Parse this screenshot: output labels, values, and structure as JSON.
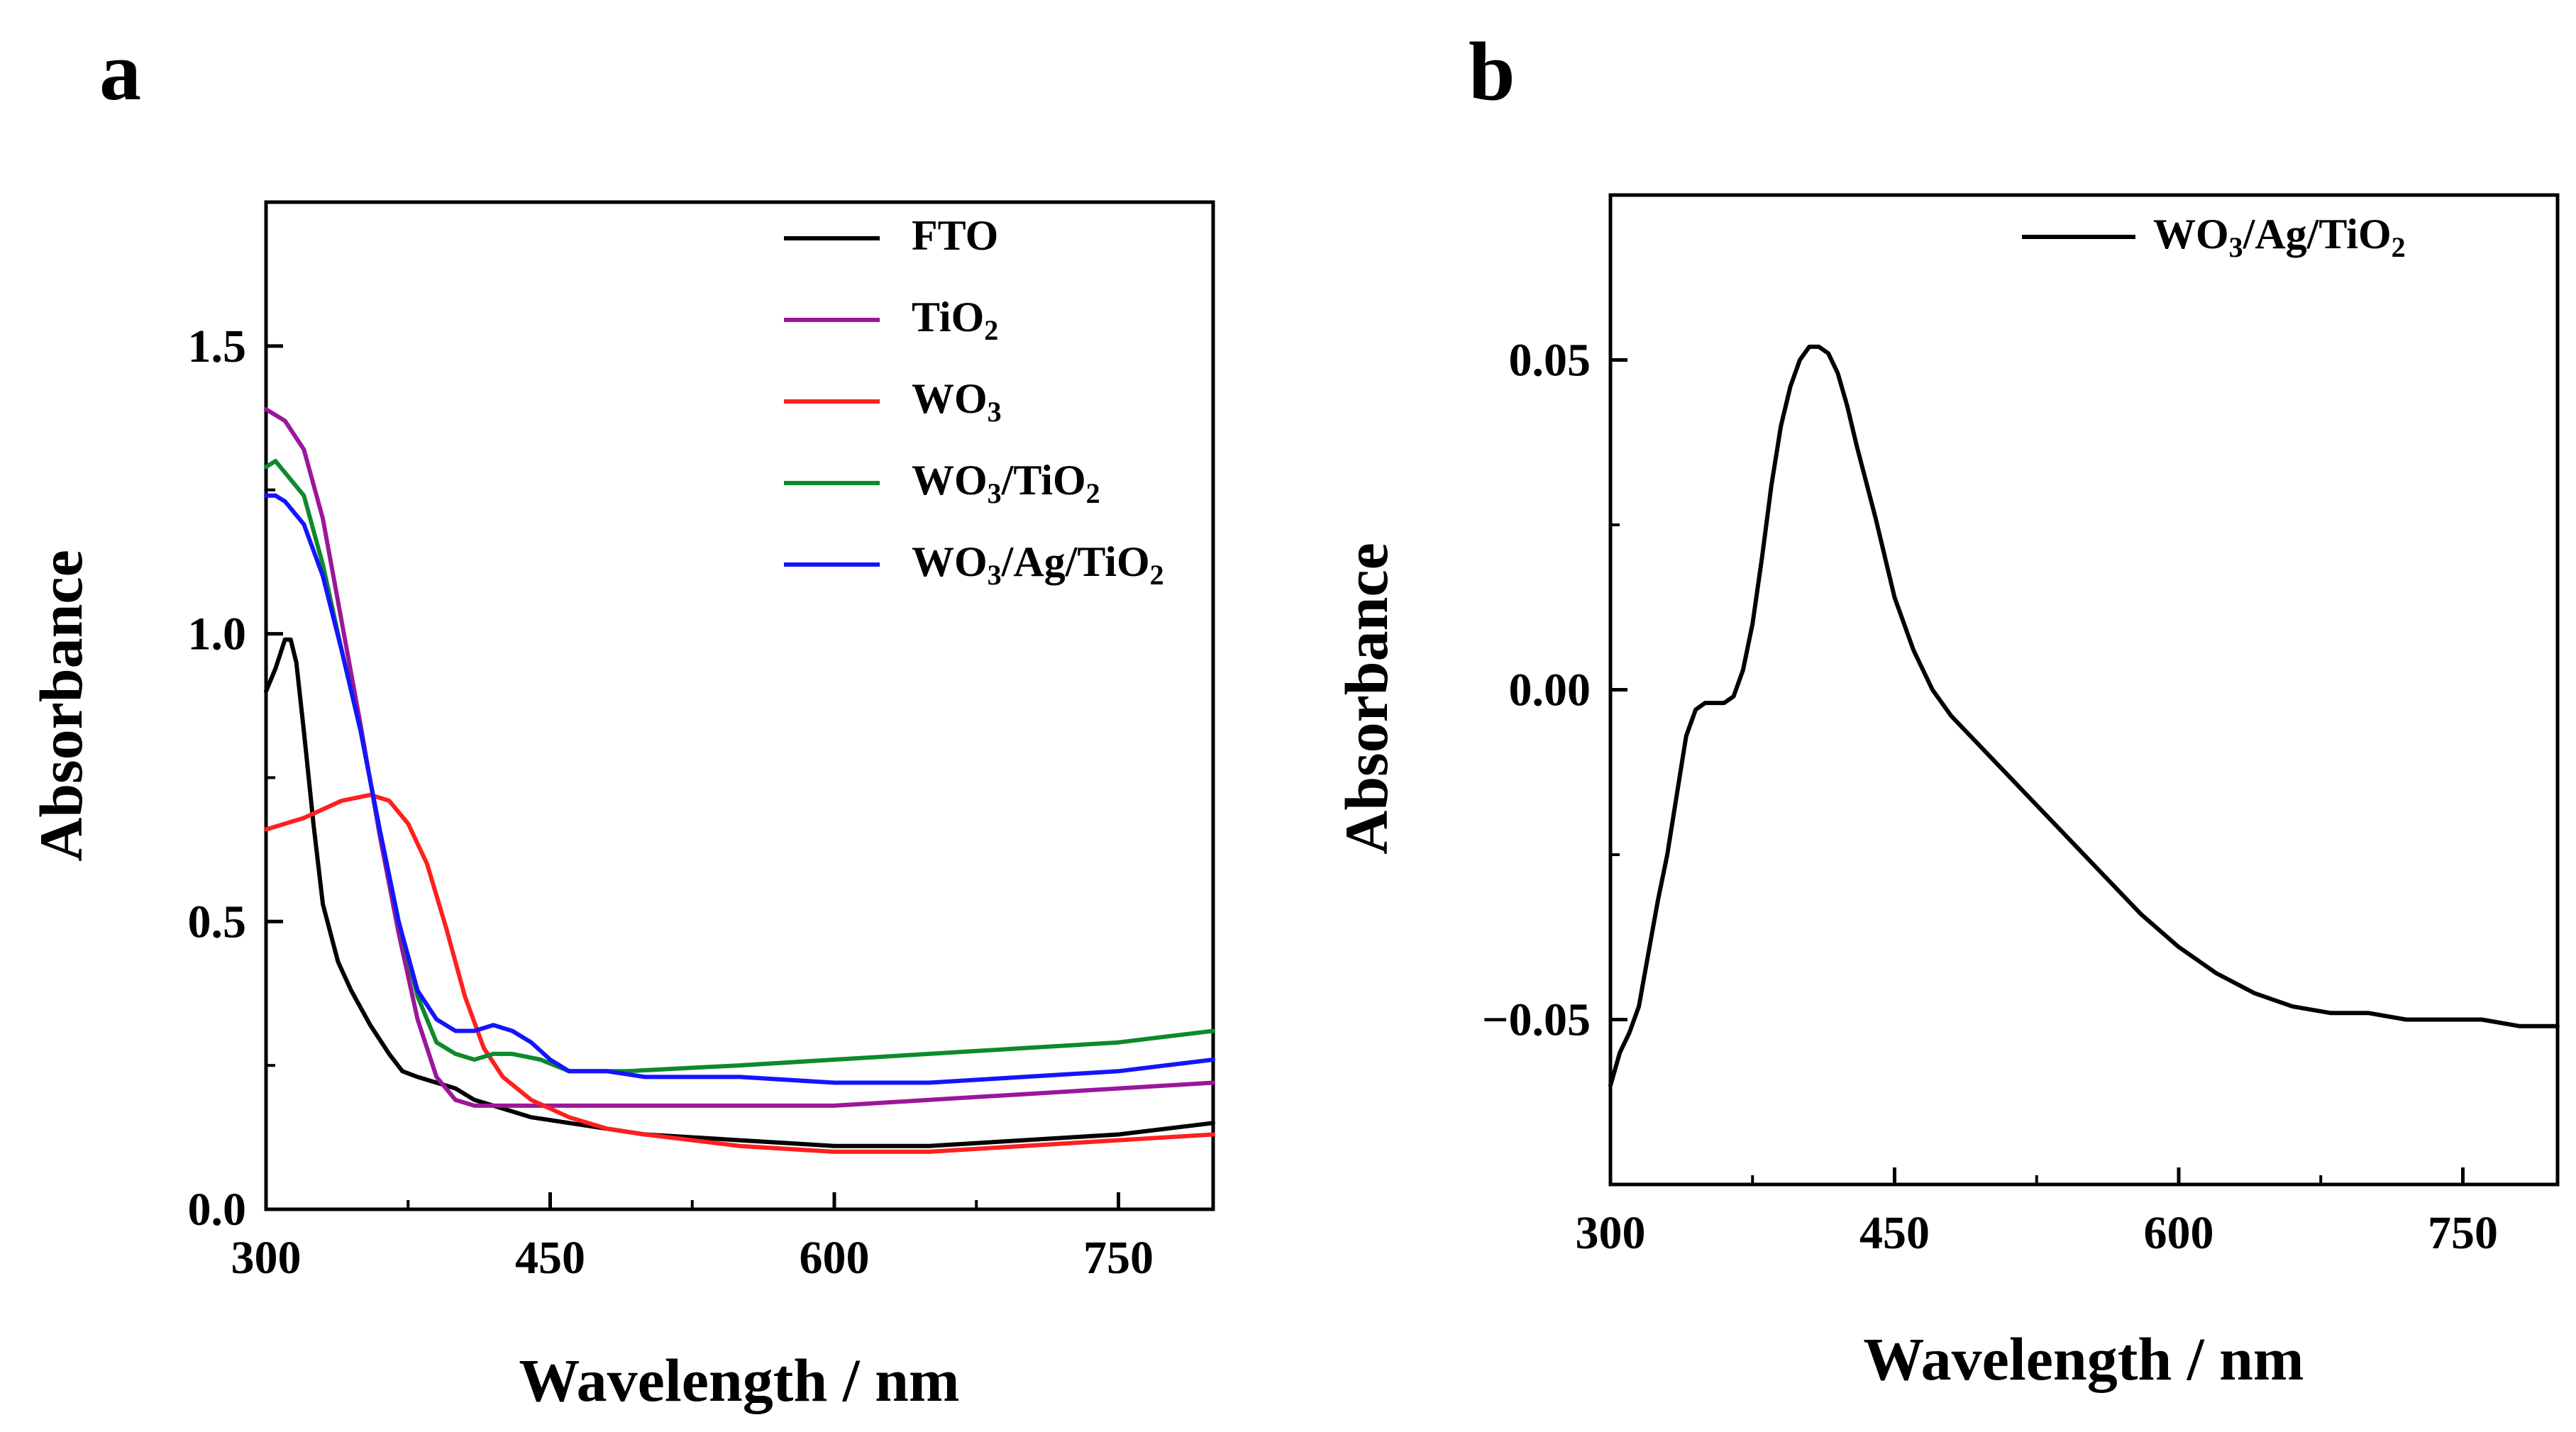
{
  "chart_data": [
    {
      "panel": "a",
      "type": "line",
      "xlabel": "Wavelength / nm",
      "ylabel": "Absorbance",
      "xlim": [
        300,
        800
      ],
      "ylim": [
        0,
        1.75
      ],
      "xticks": [
        300,
        450,
        600,
        750
      ],
      "xtick_labels": [
        "300",
        "450",
        "600",
        "750"
      ],
      "yticks": [
        0.0,
        0.5,
        1.0,
        1.5
      ],
      "ytick_labels": [
        "0.0",
        "0.5",
        "1.0",
        "1.5"
      ],
      "legend_position": "top-right",
      "series": [
        {
          "name": "FTO",
          "label_parts": [
            "FTO"
          ],
          "color": "#000000",
          "x": [
            300,
            305,
            310,
            313,
            316,
            320,
            325,
            330,
            338,
            345,
            355,
            365,
            372,
            380,
            390,
            400,
            410,
            420,
            440,
            460,
            480,
            500,
            550,
            600,
            650,
            700,
            750,
            800
          ],
          "y": [
            0.9,
            0.94,
            0.99,
            0.99,
            0.95,
            0.83,
            0.67,
            0.53,
            0.43,
            0.38,
            0.32,
            0.27,
            0.24,
            0.23,
            0.22,
            0.21,
            0.19,
            0.18,
            0.16,
            0.15,
            0.14,
            0.13,
            0.12,
            0.11,
            0.11,
            0.12,
            0.13,
            0.15
          ]
        },
        {
          "name": "TiO2",
          "label_parts": [
            "TiO",
            "2",
            ""
          ],
          "color": "#9a179a",
          "x": [
            300,
            310,
            320,
            330,
            340,
            350,
            360,
            370,
            380,
            390,
            400,
            410,
            420,
            440,
            470,
            500,
            550,
            600,
            650,
            700,
            750,
            800
          ],
          "y": [
            1.39,
            1.37,
            1.32,
            1.2,
            1.02,
            0.84,
            0.65,
            0.48,
            0.33,
            0.23,
            0.19,
            0.18,
            0.18,
            0.18,
            0.18,
            0.18,
            0.18,
            0.18,
            0.19,
            0.2,
            0.21,
            0.22
          ]
        },
        {
          "name": "WO3",
          "label_parts": [
            "WO",
            "3",
            ""
          ],
          "color": "#ff1f1f",
          "x": [
            300,
            320,
            340,
            355,
            365,
            375,
            385,
            395,
            405,
            415,
            425,
            440,
            460,
            480,
            500,
            550,
            600,
            650,
            700,
            750,
            800
          ],
          "y": [
            0.66,
            0.68,
            0.71,
            0.72,
            0.71,
            0.67,
            0.6,
            0.49,
            0.37,
            0.28,
            0.23,
            0.19,
            0.16,
            0.14,
            0.13,
            0.11,
            0.1,
            0.1,
            0.11,
            0.12,
            0.13
          ]
        },
        {
          "name": "WO3/TiO2",
          "label_parts": [
            "WO",
            "3",
            "/TiO",
            "2",
            ""
          ],
          "color": "#0d8a2b",
          "x": [
            300,
            305,
            310,
            320,
            330,
            340,
            350,
            360,
            370,
            380,
            390,
            400,
            410,
            420,
            430,
            445,
            460,
            475,
            490,
            550,
            600,
            650,
            700,
            750,
            800
          ],
          "y": [
            1.29,
            1.3,
            1.28,
            1.24,
            1.12,
            0.97,
            0.83,
            0.66,
            0.5,
            0.37,
            0.29,
            0.27,
            0.26,
            0.27,
            0.27,
            0.26,
            0.24,
            0.24,
            0.24,
            0.25,
            0.26,
            0.27,
            0.28,
            0.29,
            0.31
          ]
        },
        {
          "name": "WO3/Ag/TiO2",
          "label_parts": [
            "WO",
            "3",
            "/Ag/TiO",
            "2",
            ""
          ],
          "color": "#1414ff",
          "x": [
            300,
            305,
            310,
            320,
            330,
            340,
            350,
            360,
            370,
            380,
            390,
            400,
            410,
            420,
            430,
            440,
            450,
            460,
            480,
            500,
            550,
            600,
            650,
            700,
            750,
            800
          ],
          "y": [
            1.24,
            1.24,
            1.23,
            1.19,
            1.1,
            0.97,
            0.83,
            0.66,
            0.5,
            0.38,
            0.33,
            0.31,
            0.31,
            0.32,
            0.31,
            0.29,
            0.26,
            0.24,
            0.24,
            0.23,
            0.23,
            0.22,
            0.22,
            0.23,
            0.24,
            0.26
          ]
        }
      ]
    },
    {
      "panel": "b",
      "type": "line",
      "xlabel": "Wavelength / nm",
      "ylabel": "Absorbance",
      "xlim": [
        300,
        800
      ],
      "ylim": [
        -0.075,
        0.075
      ],
      "xticks": [
        300,
        450,
        600,
        750
      ],
      "xtick_labels": [
        "300",
        "450",
        "600",
        "750"
      ],
      "yticks": [
        -0.05,
        0.0,
        0.05
      ],
      "ytick_labels": [
        "−0.05",
        "0.00",
        "0.05"
      ],
      "legend_position": "top-right",
      "series": [
        {
          "name": "WO3/Ag/TiO2",
          "label_parts": [
            "WO",
            "3",
            "/Ag/TiO",
            "2",
            ""
          ],
          "color": "#000000",
          "x": [
            300,
            305,
            310,
            315,
            320,
            325,
            330,
            335,
            340,
            345,
            350,
            360,
            365,
            370,
            375,
            380,
            385,
            390,
            395,
            400,
            405,
            410,
            415,
            420,
            425,
            430,
            440,
            450,
            460,
            470,
            480,
            500,
            520,
            540,
            560,
            580,
            600,
            620,
            640,
            660,
            680,
            700,
            720,
            740,
            760,
            780,
            800
          ],
          "y": [
            -0.06,
            -0.055,
            -0.052,
            -0.048,
            -0.04,
            -0.032,
            -0.025,
            -0.016,
            -0.007,
            -0.003,
            -0.002,
            -0.002,
            -0.001,
            0.003,
            0.01,
            0.02,
            0.031,
            0.04,
            0.046,
            0.05,
            0.052,
            0.052,
            0.051,
            0.048,
            0.043,
            0.037,
            0.026,
            0.014,
            0.006,
            0.0,
            -0.004,
            -0.01,
            -0.016,
            -0.022,
            -0.028,
            -0.034,
            -0.039,
            -0.043,
            -0.046,
            -0.048,
            -0.049,
            -0.049,
            -0.05,
            -0.05,
            -0.05,
            -0.051,
            -0.051
          ]
        }
      ]
    }
  ],
  "panels": [
    "a",
    "b"
  ]
}
